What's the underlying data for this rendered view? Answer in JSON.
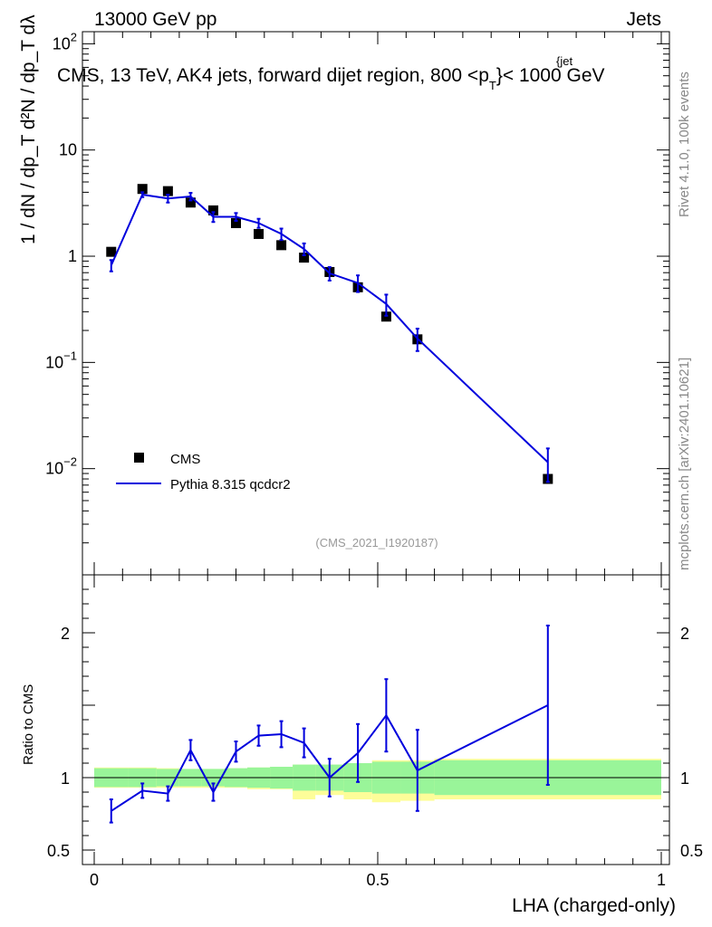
{
  "header": {
    "left": "13000 GeV pp",
    "right": "Jets"
  },
  "side_text": {
    "top": "Rivet 4.1.0,  100k events",
    "bottom": "mcplots.cern.ch [arXiv:2401.10621]"
  },
  "colors": {
    "data": "#000000",
    "mc": "#0000dd",
    "band_inner": "#99f599",
    "band_outer": "#fdfd99",
    "watermark": "#999999"
  },
  "chart_data": {
    "type": "line",
    "title": "CMS, 13 TeV, AK4 jets, forward dijet region, 800 <p",
    "title_sub": "T",
    "title_sup": "{jet",
    "title_tail": "}< 1000 GeV",
    "analysis_label": "(CMS_2021_I1920187)",
    "xlabel": "LHA (charged-only)",
    "ylabel_main": "1 / dN / dp_T  d²N / dp_T dλ",
    "ylabel_ratio": "Ratio to CMS",
    "xlim": [
      0,
      1
    ],
    "ylim_main": [
      0.001,
      130
    ],
    "ylim_ratio": [
      0.4,
      2.4
    ],
    "main_y_ticks": [
      {
        "v": 0.01,
        "base": "10",
        "exp": "−2"
      },
      {
        "v": 0.1,
        "base": "10",
        "exp": "−1"
      },
      {
        "v": 1,
        "base": "1",
        "exp": ""
      },
      {
        "v": 10,
        "base": "10",
        "exp": ""
      },
      {
        "v": 100,
        "base": "10",
        "exp": "2"
      }
    ],
    "ratio_y_ticks": [
      {
        "v": 0.5,
        "label": "0.5"
      },
      {
        "v": 1,
        "label": "1"
      },
      {
        "v": 2,
        "label": "2"
      }
    ],
    "x_ticks": [
      {
        "v": 0,
        "label": "0"
      },
      {
        "v": 0.5,
        "label": "0.5"
      },
      {
        "v": 1,
        "label": "1"
      }
    ],
    "legend": [
      {
        "name": "CMS",
        "kind": "marker"
      },
      {
        "name": "Pythia 8.315 qcdcr2",
        "kind": "line"
      }
    ],
    "series": [
      {
        "name": "CMS",
        "x": [
          0.03,
          0.085,
          0.13,
          0.17,
          0.21,
          0.25,
          0.29,
          0.33,
          0.37,
          0.415,
          0.465,
          0.515,
          0.57,
          0.8
        ],
        "y": [
          1.1,
          4.3,
          4.1,
          3.2,
          2.7,
          2.05,
          1.62,
          1.27,
          0.97,
          0.71,
          0.51,
          0.27,
          0.165,
          0.008
        ]
      },
      {
        "name": "Pythia 8.315 qcdcr2",
        "x": [
          0.03,
          0.085,
          0.13,
          0.17,
          0.21,
          0.25,
          0.29,
          0.33,
          0.37,
          0.415,
          0.465,
          0.515,
          0.57,
          0.8
        ],
        "y": [
          0.82,
          3.8,
          3.5,
          3.65,
          2.35,
          2.35,
          2.05,
          1.62,
          1.17,
          0.69,
          0.56,
          0.355,
          0.168,
          0.0115
        ],
        "err_lo": [
          0.1,
          0.2,
          0.3,
          0.3,
          0.25,
          0.2,
          0.2,
          0.2,
          0.15,
          0.1,
          0.1,
          0.08,
          0.04,
          0.004
        ],
        "err_hi": [
          0.1,
          0.2,
          0.3,
          0.3,
          0.25,
          0.2,
          0.2,
          0.2,
          0.15,
          0.1,
          0.1,
          0.08,
          0.04,
          0.004
        ]
      }
    ],
    "ratio": {
      "x": [
        0.03,
        0.085,
        0.13,
        0.17,
        0.21,
        0.25,
        0.29,
        0.33,
        0.37,
        0.415,
        0.465,
        0.515,
        0.57,
        0.8
      ],
      "y": [
        0.77,
        0.91,
        0.89,
        1.19,
        0.9,
        1.18,
        1.29,
        1.3,
        1.24,
        1.0,
        1.17,
        1.43,
        1.05,
        1.5
      ],
      "err": [
        0.08,
        0.05,
        0.05,
        0.07,
        0.06,
        0.07,
        0.07,
        0.09,
        0.1,
        0.13,
        0.2,
        0.25,
        0.28,
        0.55
      ]
    },
    "bands": {
      "edges": [
        0,
        0.06,
        0.11,
        0.15,
        0.19,
        0.23,
        0.27,
        0.31,
        0.35,
        0.39,
        0.44,
        0.49,
        0.54,
        0.6,
        1.0
      ],
      "inner": [
        0.065,
        0.065,
        0.06,
        0.06,
        0.06,
        0.065,
        0.07,
        0.075,
        0.09,
        0.09,
        0.1,
        0.11,
        0.11,
        0.12
      ],
      "outer_lo": [
        0.07,
        0.07,
        0.07,
        0.07,
        0.07,
        0.07,
        0.08,
        0.08,
        0.15,
        0.12,
        0.15,
        0.17,
        0.16,
        0.15
      ],
      "outer_hi": [
        0.07,
        0.07,
        0.065,
        0.06,
        0.06,
        0.065,
        0.07,
        0.075,
        0.09,
        0.09,
        0.1,
        0.12,
        0.12,
        0.13
      ]
    }
  }
}
